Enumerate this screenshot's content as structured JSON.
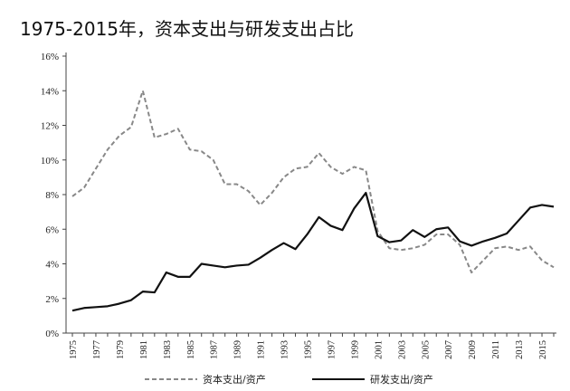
{
  "title": "1975-2015年，资本支出与研发支出占比",
  "chart_data": {
    "type": "line",
    "title": "1975-2015年，资本支出与研发支出占比",
    "xlabel": "",
    "ylabel": "",
    "xlim": [
      1975,
      2016
    ],
    "ylim": [
      0,
      16
    ],
    "yticks": [
      "0%",
      "2%",
      "4%",
      "6%",
      "8%",
      "10%",
      "12%",
      "14%",
      "16%"
    ],
    "xticks": [
      "1975",
      "1977",
      "1979",
      "1981",
      "1983",
      "1985",
      "1987",
      "1989",
      "1991",
      "1993",
      "1995",
      "1997",
      "1999",
      "2001",
      "2003",
      "2005",
      "2007",
      "2009",
      "2011",
      "2013",
      "2015"
    ],
    "grid": false,
    "legend_position": "bottom",
    "x": [
      1975,
      1976,
      1977,
      1978,
      1979,
      1980,
      1981,
      1982,
      1983,
      1984,
      1985,
      1986,
      1987,
      1988,
      1989,
      1990,
      1991,
      1992,
      1993,
      1994,
      1995,
      1996,
      1997,
      1998,
      1999,
      2000,
      2001,
      2002,
      2003,
      2004,
      2005,
      2006,
      2007,
      2008,
      2009,
      2010,
      2011,
      2012,
      2013,
      2014,
      2015,
      2016
    ],
    "series": [
      {
        "name": "资本支出/资产",
        "color": "#888888",
        "style": "dashed",
        "values": [
          7.9,
          8.4,
          9.5,
          10.6,
          11.4,
          11.9,
          14.0,
          11.3,
          11.5,
          11.8,
          10.6,
          10.5,
          10.0,
          8.6,
          8.6,
          8.2,
          7.4,
          8.1,
          9.0,
          9.5,
          9.6,
          10.4,
          9.6,
          9.2,
          9.6,
          9.4,
          5.9,
          4.9,
          4.8,
          4.9,
          5.1,
          5.7,
          5.7,
          5.1,
          3.5,
          4.2,
          4.9,
          5.0,
          4.8,
          5.0,
          4.2,
          3.8
        ]
      },
      {
        "name": "研发支出/资产",
        "color": "#111111",
        "style": "solid",
        "values": [
          1.3,
          1.45,
          1.5,
          1.55,
          1.7,
          1.9,
          2.4,
          2.35,
          3.5,
          3.25,
          3.25,
          4.0,
          3.9,
          3.8,
          3.9,
          3.95,
          4.35,
          4.8,
          5.2,
          4.85,
          5.7,
          6.7,
          6.2,
          5.95,
          7.2,
          8.1,
          5.6,
          5.25,
          5.35,
          5.95,
          5.55,
          6.0,
          6.1,
          5.3,
          5.05,
          5.3,
          5.5,
          5.75,
          6.5,
          7.25,
          7.4,
          7.3
        ]
      }
    ]
  }
}
